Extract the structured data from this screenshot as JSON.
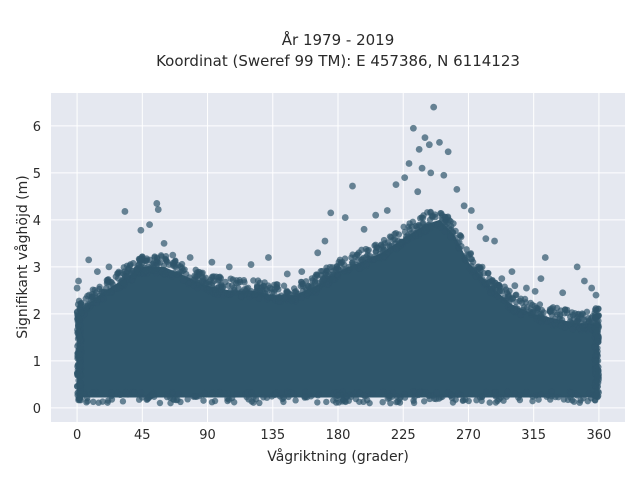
{
  "chart_data": {
    "type": "scatter",
    "title_line1": "År 1979 - 2019",
    "title_line2": "Koordinat (Sweref 99 TM): E 457386, N 6114123",
    "xlabel": "Vågriktning (grader)",
    "ylabel": "Signifikant våghöjd (m)",
    "xlim": [
      -18,
      378
    ],
    "ylim": [
      -0.3,
      6.7
    ],
    "xticks": [
      0,
      45,
      90,
      135,
      180,
      225,
      270,
      315,
      360
    ],
    "yticks": [
      0,
      1,
      2,
      3,
      4,
      5,
      6
    ],
    "grid": true,
    "marker_color": "#2f566b",
    "marker_opacity": 0.7,
    "plot_bg": "#e5e8f0",
    "envelope": {
      "direction": [
        0,
        15,
        30,
        45,
        60,
        75,
        90,
        105,
        120,
        135,
        150,
        165,
        180,
        195,
        210,
        225,
        240,
        250,
        260,
        270,
        285,
        300,
        315,
        330,
        345,
        360
      ],
      "dense_upper_hs": [
        2.0,
        2.4,
        2.7,
        3.0,
        3.0,
        2.8,
        2.6,
        2.5,
        2.5,
        2.4,
        2.4,
        2.6,
        2.9,
        3.1,
        3.3,
        3.6,
        3.9,
        4.0,
        3.7,
        3.1,
        2.6,
        2.2,
        2.0,
        1.9,
        1.8,
        1.8
      ]
    },
    "outliers": [
      {
        "x": 246,
        "y": 6.4
      },
      {
        "x": 232,
        "y": 5.95
      },
      {
        "x": 240,
        "y": 5.75
      },
      {
        "x": 243,
        "y": 5.6
      },
      {
        "x": 236,
        "y": 5.5
      },
      {
        "x": 256,
        "y": 5.45
      },
      {
        "x": 250,
        "y": 5.65
      },
      {
        "x": 229,
        "y": 5.2
      },
      {
        "x": 238,
        "y": 5.1
      },
      {
        "x": 244,
        "y": 5.0
      },
      {
        "x": 253,
        "y": 4.95
      },
      {
        "x": 226,
        "y": 4.9
      },
      {
        "x": 220,
        "y": 4.75
      },
      {
        "x": 190,
        "y": 4.72
      },
      {
        "x": 262,
        "y": 4.65
      },
      {
        "x": 235,
        "y": 4.6
      },
      {
        "x": 267,
        "y": 4.3
      },
      {
        "x": 272,
        "y": 4.2
      },
      {
        "x": 55,
        "y": 4.35
      },
      {
        "x": 56,
        "y": 4.22
      },
      {
        "x": 33,
        "y": 4.18
      },
      {
        "x": 50,
        "y": 3.9
      },
      {
        "x": 44,
        "y": 3.78
      },
      {
        "x": 185,
        "y": 4.05
      },
      {
        "x": 175,
        "y": 4.15
      },
      {
        "x": 206,
        "y": 4.1
      },
      {
        "x": 278,
        "y": 3.85
      },
      {
        "x": 282,
        "y": 3.6
      },
      {
        "x": 288,
        "y": 3.55
      },
      {
        "x": 171,
        "y": 3.55
      },
      {
        "x": 166,
        "y": 3.3
      },
      {
        "x": 60,
        "y": 3.5
      },
      {
        "x": 66,
        "y": 3.25
      },
      {
        "x": 78,
        "y": 3.2
      },
      {
        "x": 93,
        "y": 3.1
      },
      {
        "x": 120,
        "y": 3.05
      },
      {
        "x": 132,
        "y": 3.2
      },
      {
        "x": 8,
        "y": 3.15
      },
      {
        "x": 14,
        "y": 2.9
      },
      {
        "x": 293,
        "y": 2.75
      },
      {
        "x": 300,
        "y": 2.9
      },
      {
        "x": 323,
        "y": 3.2
      },
      {
        "x": 320,
        "y": 2.75
      },
      {
        "x": 345,
        "y": 3.0
      },
      {
        "x": 350,
        "y": 2.7
      },
      {
        "x": 355,
        "y": 2.55
      },
      {
        "x": 358,
        "y": 2.4
      },
      {
        "x": 310,
        "y": 2.55
      },
      {
        "x": 335,
        "y": 2.45
      },
      {
        "x": 214,
        "y": 4.2
      },
      {
        "x": 198,
        "y": 3.8
      },
      {
        "x": 22,
        "y": 3.0
      },
      {
        "x": 145,
        "y": 2.85
      },
      {
        "x": 155,
        "y": 2.9
      },
      {
        "x": 105,
        "y": 3.0
      },
      {
        "x": 1,
        "y": 2.7
      },
      {
        "x": 0,
        "y": 2.55
      },
      {
        "x": 3,
        "y": 2.2
      },
      {
        "x": 302,
        "y": 2.6
      },
      {
        "x": 316,
        "y": 2.48
      }
    ]
  }
}
